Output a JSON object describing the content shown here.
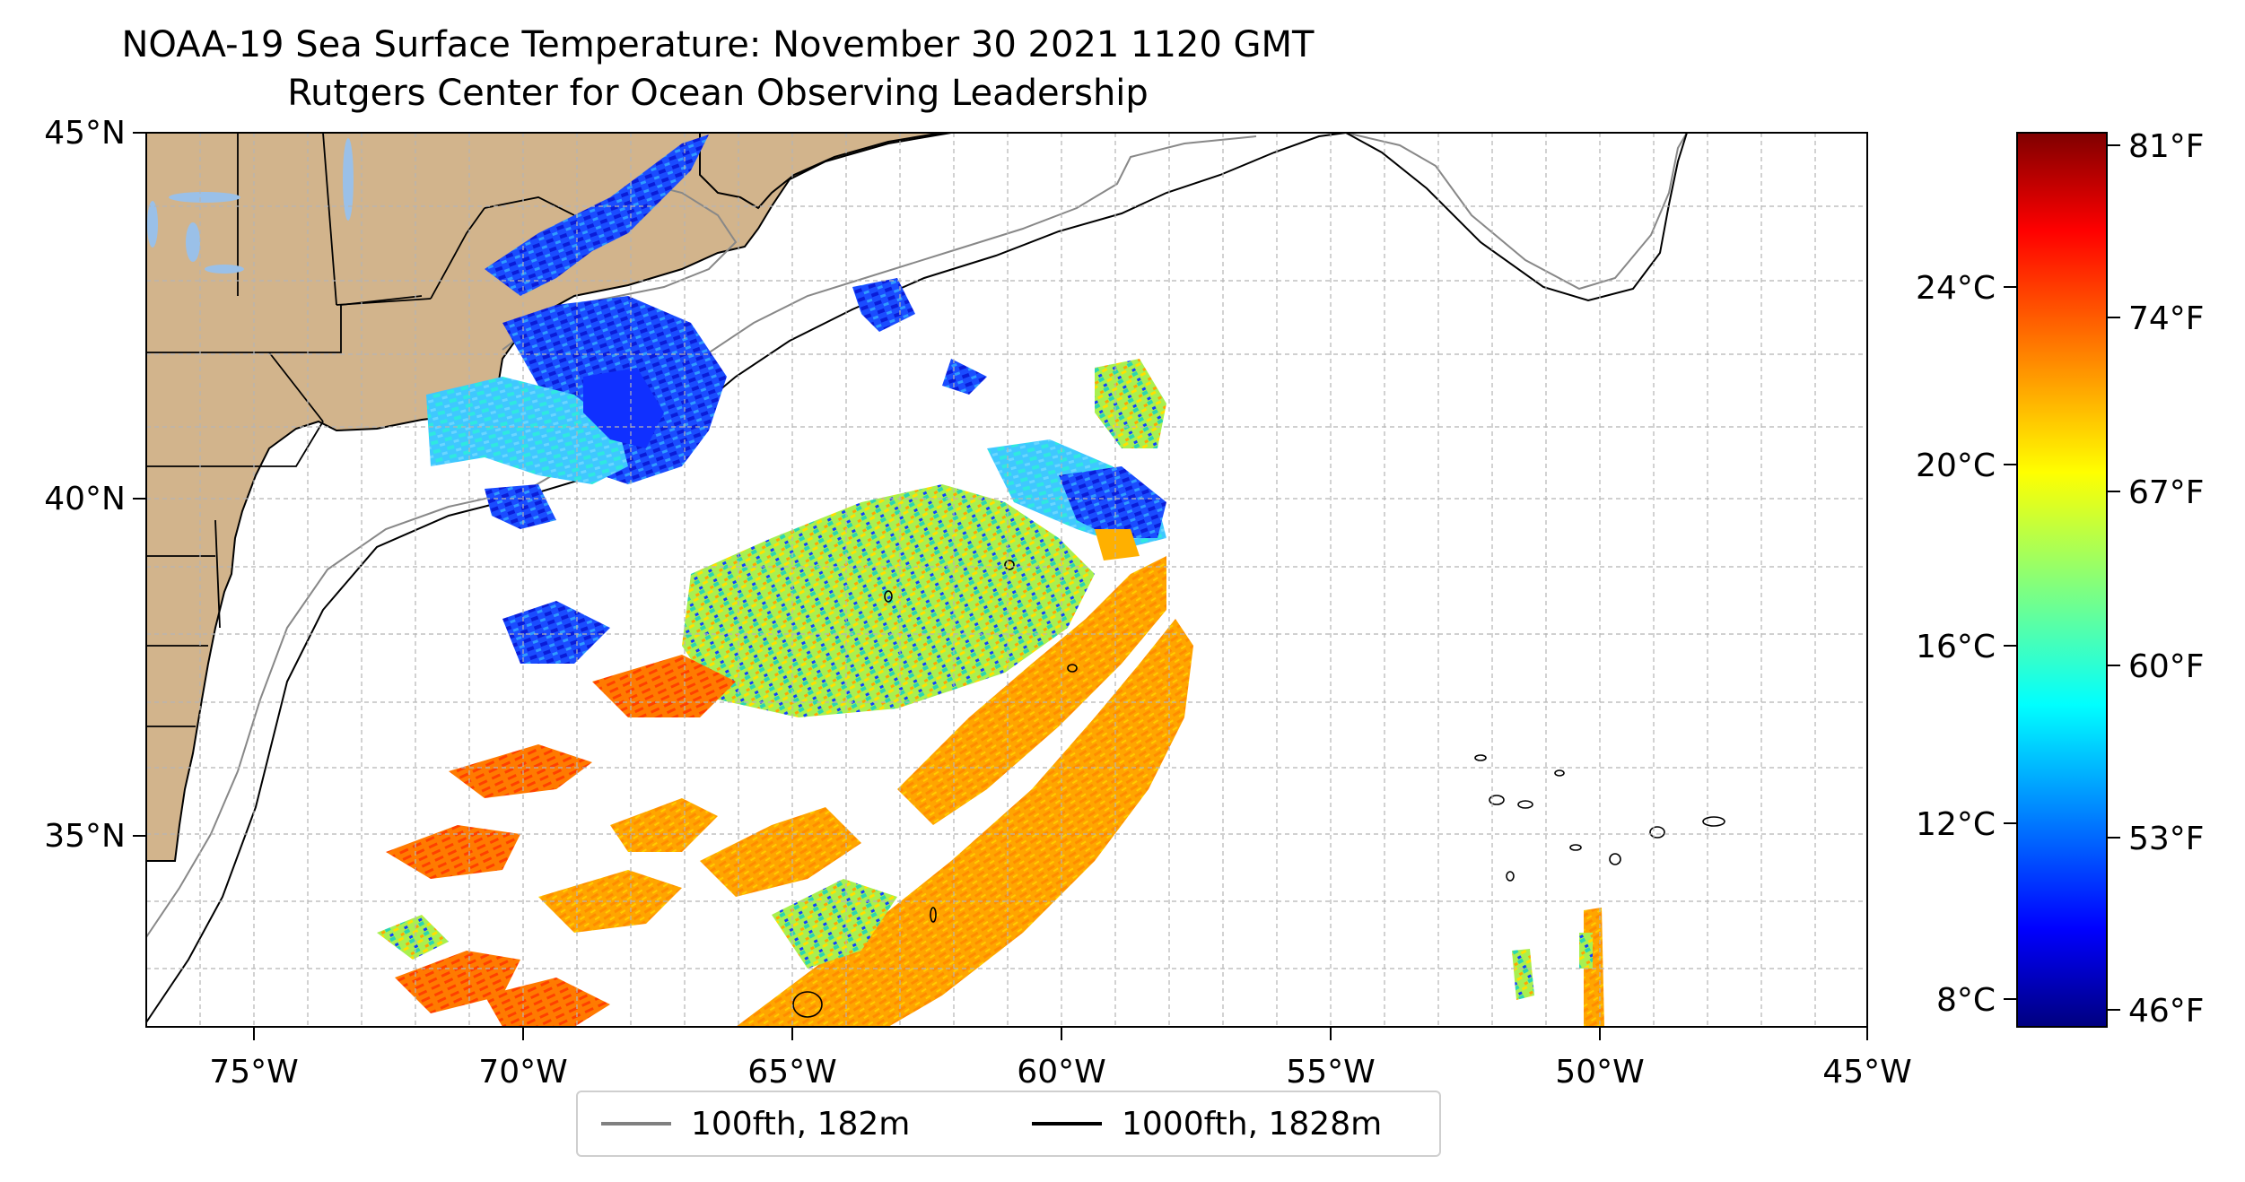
{
  "title": {
    "line1": "NOAA-19 Sea Surface Temperature: November 30 2021 1120 GMT",
    "line2": "Rutgers Center for Ocean Observing Leadership"
  },
  "map": {
    "lon_range": [
      -77,
      -45
    ],
    "lat_range": [
      31.5,
      45
    ],
    "x_ticks": [
      "75°W",
      "70°W",
      "65°W",
      "60°W",
      "55°W",
      "50°W",
      "45°W"
    ],
    "y_ticks": [
      "35°N",
      "40°N",
      "45°N"
    ],
    "colors": {
      "land": "#d2b48c",
      "lakes": "#9ac0e8",
      "ocean": "#ffffff",
      "grid": "#b5b5b5"
    }
  },
  "colorbar": {
    "colormap": "jet",
    "celsius_ticks": [
      "8°C",
      "12°C",
      "16°C",
      "20°C",
      "24°C"
    ],
    "fahrenheit_ticks": [
      "46°F",
      "53°F",
      "60°F",
      "67°F",
      "74°F",
      "81°F"
    ],
    "range_f": [
      46,
      81
    ]
  },
  "legend": {
    "items": [
      {
        "label": "100fth, 182m",
        "color": "#808080"
      },
      {
        "label": "1000fth, 1828m",
        "color": "#000000"
      }
    ]
  }
}
